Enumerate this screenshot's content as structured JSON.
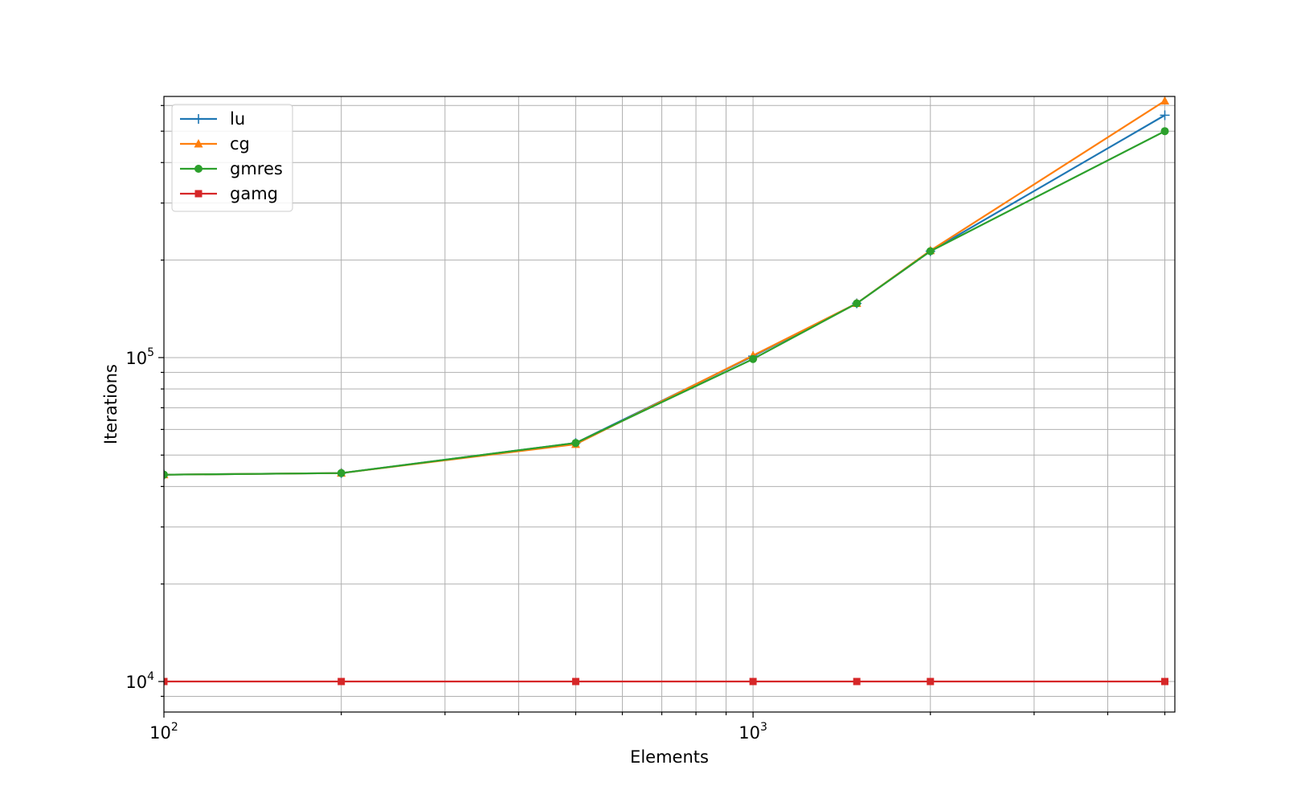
{
  "chart_data": {
    "type": "line",
    "title": "",
    "xlabel": "Elements",
    "ylabel": "Iterations",
    "xscale": "log",
    "yscale": "log",
    "xlim": [
      100,
      5200
    ],
    "ylim": [
      8050,
      640000
    ],
    "grid": true,
    "grid_minor": true,
    "legend_position": "top-left",
    "x_ticks": [
      {
        "value": 100,
        "base": "10",
        "exp": "2"
      },
      {
        "value": 1000,
        "base": "10",
        "exp": "3"
      }
    ],
    "y_ticks": [
      {
        "value": 10000,
        "base": "10",
        "exp": "4"
      },
      {
        "value": 100000,
        "base": "10",
        "exp": "5"
      }
    ],
    "x": [
      100,
      200,
      500,
      1000,
      1500,
      2000,
      5000
    ],
    "series": [
      {
        "name": "lu",
        "color": "#1f77b4",
        "marker": "plus",
        "values": [
          43500,
          44000,
          54500,
          101000,
          147000,
          213000,
          560000
        ]
      },
      {
        "name": "cg",
        "color": "#ff7f0e",
        "marker": "triangle",
        "values": [
          43500,
          44000,
          54000,
          101500,
          147000,
          214000,
          620000
        ]
      },
      {
        "name": "gmres",
        "color": "#2ca02c",
        "marker": "circle",
        "values": [
          43500,
          44000,
          54500,
          99000,
          147000,
          213000,
          500000
        ]
      },
      {
        "name": "gamg",
        "color": "#d62728",
        "marker": "square",
        "values": [
          10000,
          10000,
          10000,
          10000,
          10000,
          10000,
          10000
        ]
      }
    ]
  }
}
